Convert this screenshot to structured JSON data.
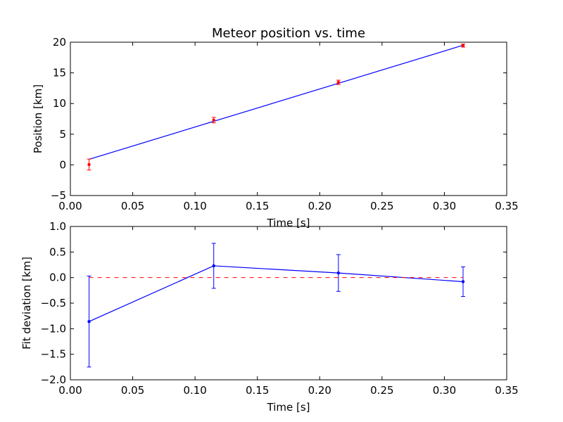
{
  "colors": {
    "fit_line": "#0000ff",
    "measured": "#ff0000",
    "deviation": "#0000ff",
    "zero_line": "#ff0000",
    "axes": "#000000"
  },
  "chart_data": [
    {
      "type": "line",
      "title": "Meteor position vs. time",
      "xlabel": "Time [s]",
      "ylabel": "Position [km]",
      "xlim": [
        0.0,
        0.35
      ],
      "ylim": [
        -5,
        20
      ],
      "xticks": [
        "0.00",
        "0.05",
        "0.10",
        "0.15",
        "0.20",
        "0.25",
        "0.30",
        "0.35"
      ],
      "yticks": [
        "−5",
        "0",
        "5",
        "10",
        "15",
        "20"
      ],
      "grid": false,
      "series": [
        {
          "kind": "fit-line",
          "x": [
            0.015,
            0.315
          ],
          "y": [
            0.9,
            19.5
          ]
        },
        {
          "kind": "errorbar-points",
          "x": [
            0.015,
            0.115,
            0.215,
            0.315
          ],
          "y": [
            0.05,
            7.3,
            13.45,
            19.45
          ],
          "yerr": [
            0.9,
            0.45,
            0.35,
            0.25
          ]
        }
      ]
    },
    {
      "type": "line",
      "title": "",
      "xlabel": "Time [s]",
      "ylabel": "Fit deviation [km]",
      "xlim": [
        0.0,
        0.35
      ],
      "ylim": [
        -2.0,
        1.0
      ],
      "xticks": [
        "0.00",
        "0.05",
        "0.10",
        "0.15",
        "0.20",
        "0.25",
        "0.30",
        "0.35"
      ],
      "yticks": [
        "−2.0",
        "−1.5",
        "−1.0",
        "−0.5",
        "0.0",
        "0.5",
        "1.0"
      ],
      "grid": false,
      "series": [
        {
          "kind": "errorbar-line",
          "x": [
            0.015,
            0.115,
            0.215,
            0.315
          ],
          "y": [
            -0.86,
            0.23,
            0.09,
            -0.08
          ],
          "yerr": [
            0.89,
            0.44,
            0.36,
            0.29
          ]
        },
        {
          "kind": "reference-dashed",
          "x": [
            0.015,
            0.315
          ],
          "y": [
            0.0,
            0.0
          ]
        }
      ]
    }
  ]
}
